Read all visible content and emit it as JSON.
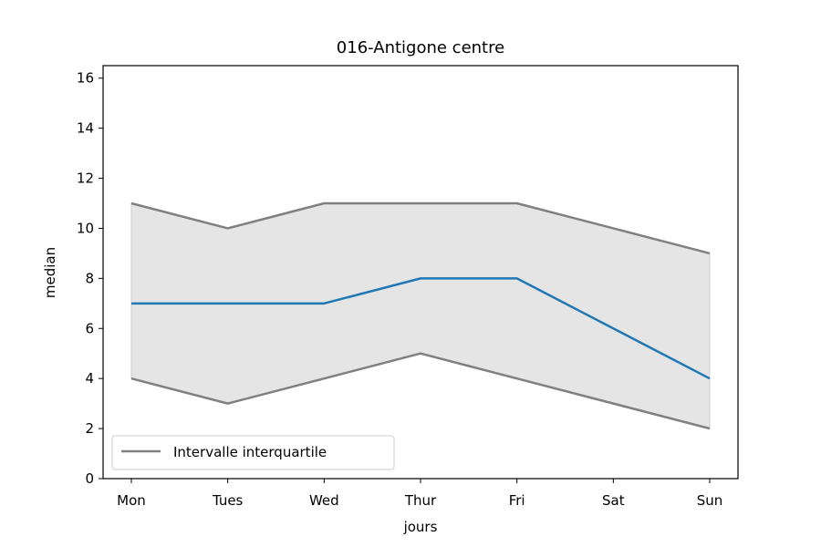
{
  "chart_data": {
    "type": "line",
    "title": "016-Antigone centre",
    "xlabel": "jours",
    "ylabel": "median",
    "categories": [
      "Mon",
      "Tues",
      "Wed",
      "Thur",
      "Fri",
      "Sat",
      "Sun"
    ],
    "yticks": [
      0,
      2,
      4,
      6,
      8,
      10,
      12,
      14,
      16
    ],
    "ylim": [
      0,
      16.5
    ],
    "grid": false,
    "legend_position": "lower-left",
    "series": [
      {
        "values": [
          7,
          7,
          7,
          8,
          8,
          6,
          4
        ],
        "color": "#1f77b4"
      },
      {
        "name": "Intervalle interquartile",
        "role": "upper-quartile",
        "values": [
          11,
          10,
          11,
          11,
          11,
          10,
          9
        ],
        "color": "#808080"
      },
      {
        "role": "lower-quartile",
        "values": [
          4,
          3,
          4,
          5,
          4,
          3,
          2
        ],
        "color": "#808080"
      }
    ],
    "band_fill_color": "#e5e5e5"
  }
}
